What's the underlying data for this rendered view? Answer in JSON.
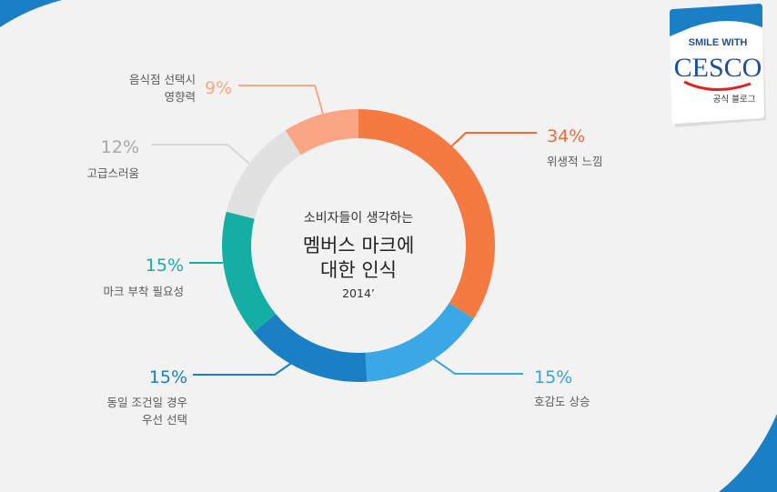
{
  "chart_data": {
    "type": "pie",
    "donut": true,
    "center_text": {
      "line1": "소비자들이 생각하는",
      "line2": "멤버스 마크에",
      "line3": "대한 인식",
      "line4": "2014’"
    },
    "slices": [
      {
        "label_lines": [
          "위생적 느낌"
        ],
        "pct_text": "34%",
        "value": 34,
        "color": "#f47a42"
      },
      {
        "label_lines": [
          "호감도 상승"
        ],
        "pct_text": "15%",
        "value": 15,
        "color": "#3ba7e4"
      },
      {
        "label_lines": [
          "동일 조건일 경우",
          "우선 선택"
        ],
        "pct_text": "15%",
        "value": 15,
        "color": "#1a7fc4"
      },
      {
        "label_lines": [
          "마크 부착 필요성"
        ],
        "pct_text": "15%",
        "value": 15,
        "color": "#14aea5"
      },
      {
        "label_lines": [
          "고급스러움"
        ],
        "pct_text": "12%",
        "value": 12,
        "color": "#e1e1e1"
      },
      {
        "label_lines": [
          "음식점 선택시",
          "영향력"
        ],
        "pct_text": "9%",
        "value": 9,
        "color": "#fba584"
      }
    ],
    "percent_colors": [
      "#f16b33",
      "#3b9fd6",
      "#1a7fc4",
      "#14aea5",
      "#a8a8a8",
      "#fba584"
    ]
  },
  "logo": {
    "tagline": "SMILE WITH",
    "brand": "CESCO",
    "sub": "공식 블로그"
  }
}
